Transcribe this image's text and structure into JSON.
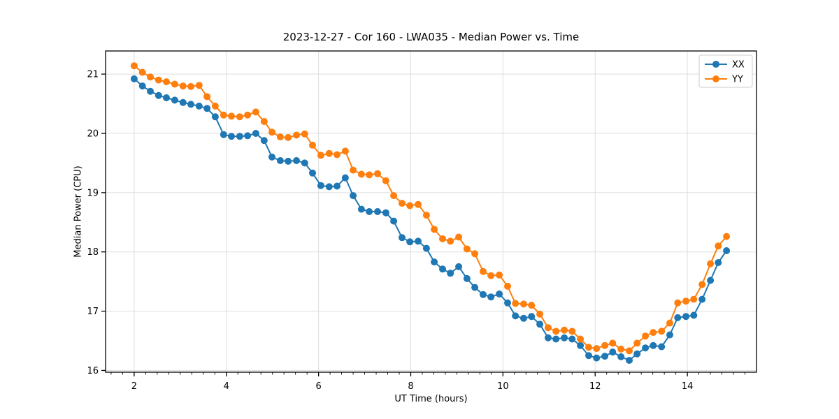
{
  "figure": {
    "background": "#ffffff"
  },
  "chart_data": {
    "type": "line",
    "title": "2023-12-27 - Cor 160 - LWA035 - Median Power vs. Time",
    "xlabel": "UT Time (hours)",
    "ylabel": "Median Power (CPU)",
    "xlim": [
      1.38,
      15.5
    ],
    "ylim": [
      15.97,
      21.39
    ],
    "xticks": [
      2,
      4,
      6,
      8,
      10,
      12,
      14
    ],
    "yticks": [
      16,
      17,
      18,
      19,
      20,
      21
    ],
    "minor_xtick_step": 0.25,
    "grid": true,
    "grid_color": "#dedede",
    "legend_position": "upper right",
    "x": [
      2.0,
      2.18,
      2.35,
      2.53,
      2.7,
      2.88,
      3.06,
      3.23,
      3.41,
      3.58,
      3.76,
      3.94,
      4.11,
      4.29,
      4.46,
      4.64,
      4.82,
      4.99,
      5.17,
      5.34,
      5.52,
      5.7,
      5.87,
      6.05,
      6.23,
      6.4,
      6.58,
      6.75,
      6.93,
      7.1,
      7.28,
      7.46,
      7.63,
      7.81,
      7.98,
      8.16,
      8.34,
      8.51,
      8.69,
      8.86,
      9.04,
      9.22,
      9.39,
      9.57,
      9.74,
      9.92,
      10.1,
      10.27,
      10.45,
      10.62,
      10.8,
      10.98,
      11.15,
      11.33,
      11.5,
      11.68,
      11.86,
      12.03,
      12.21,
      12.38,
      12.56,
      12.74,
      12.91,
      13.09,
      13.26,
      13.44,
      13.62,
      13.79,
      13.97,
      14.14,
      14.32,
      14.5,
      14.67,
      14.85
    ],
    "series": [
      {
        "name": "XX",
        "color": "#1f77b4",
        "marker": "circle",
        "values": [
          20.92,
          20.8,
          20.71,
          20.64,
          20.6,
          20.56,
          20.52,
          20.49,
          20.46,
          20.42,
          20.28,
          19.98,
          19.95,
          19.95,
          19.96,
          20.0,
          19.88,
          19.6,
          19.54,
          19.53,
          19.54,
          19.5,
          19.33,
          19.12,
          19.1,
          19.11,
          19.25,
          18.95,
          18.72,
          18.68,
          18.68,
          18.66,
          18.52,
          18.24,
          18.17,
          18.18,
          18.06,
          17.83,
          17.71,
          17.64,
          17.75,
          17.55,
          17.4,
          17.28,
          17.24,
          17.29,
          17.14,
          16.92,
          16.88,
          16.91,
          16.78,
          16.55,
          16.53,
          16.55,
          16.53,
          16.42,
          16.25,
          16.21,
          16.24,
          16.31,
          16.23,
          16.17,
          16.28,
          16.38,
          16.42,
          16.4,
          16.6,
          16.89,
          16.91,
          16.93,
          17.2,
          17.52,
          17.82,
          18.02
        ]
      },
      {
        "name": "YY",
        "color": "#ff7f0e",
        "marker": "circle",
        "values": [
          21.14,
          21.03,
          20.95,
          20.9,
          20.87,
          20.83,
          20.8,
          20.79,
          20.81,
          20.62,
          20.46,
          20.31,
          20.29,
          20.28,
          20.31,
          20.36,
          20.2,
          20.02,
          19.94,
          19.93,
          19.97,
          19.99,
          19.8,
          19.63,
          19.66,
          19.64,
          19.7,
          19.38,
          19.31,
          19.3,
          19.32,
          19.2,
          18.95,
          18.82,
          18.78,
          18.8,
          18.62,
          18.38,
          18.22,
          18.18,
          18.25,
          18.05,
          17.97,
          17.67,
          17.6,
          17.61,
          17.42,
          17.13,
          17.12,
          17.1,
          16.95,
          16.72,
          16.66,
          16.68,
          16.66,
          16.53,
          16.39,
          16.37,
          16.42,
          16.46,
          16.36,
          16.33,
          16.46,
          16.58,
          16.64,
          16.66,
          16.8,
          17.14,
          17.17,
          17.2,
          17.45,
          17.8,
          18.1,
          18.26
        ]
      }
    ]
  },
  "legend": {
    "items": [
      {
        "label": "XX",
        "color": "#1f77b4"
      },
      {
        "label": "YY",
        "color": "#ff7f0e"
      }
    ]
  }
}
